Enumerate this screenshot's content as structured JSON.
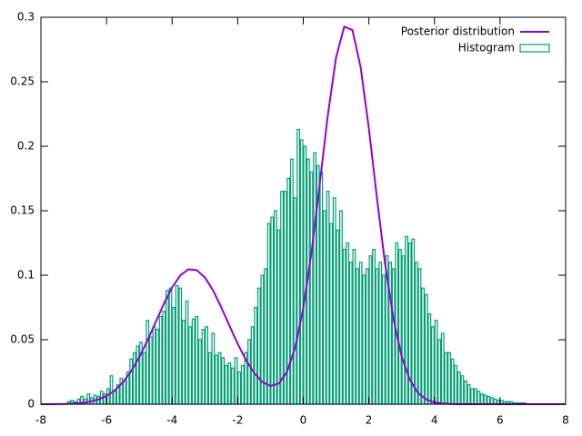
{
  "chart_data": {
    "type": "combo",
    "xlim": [
      -8,
      8
    ],
    "ylim": [
      0,
      0.3
    ],
    "xticks": [
      -8,
      -6,
      -4,
      -2,
      0,
      2,
      4,
      6,
      8
    ],
    "yticks": [
      0,
      0.05,
      0.1,
      0.15,
      0.2,
      0.25,
      0.3
    ],
    "legend": "top right",
    "series": [
      {
        "name": "Posterior distribution",
        "type": "line",
        "color": "#9400d3",
        "x": [
          -8,
          -7.75,
          -7.5,
          -7.25,
          -7,
          -6.75,
          -6.5,
          -6.25,
          -6,
          -5.75,
          -5.5,
          -5.25,
          -5,
          -4.75,
          -4.5,
          -4.25,
          -4,
          -3.75,
          -3.5,
          -3.25,
          -3,
          -2.75,
          -2.5,
          -2.25,
          -2,
          -1.75,
          -1.5,
          -1.25,
          -1,
          -0.75,
          -0.5,
          -0.25,
          0,
          0.25,
          0.5,
          0.75,
          1,
          1.25,
          1.5,
          1.75,
          2,
          2.25,
          2.5,
          2.75,
          3,
          3.25,
          3.5,
          3.75,
          4,
          4.25,
          4.5,
          4.75,
          5,
          5.25,
          5.5,
          5.75,
          6,
          6.25,
          6.5,
          6.75,
          7,
          7.25,
          7.5,
          7.75,
          8
        ],
        "values": [
          0,
          0,
          0.0001,
          0.0002,
          0.0005,
          0.001,
          0.002,
          0.0037,
          0.0064,
          0.0107,
          0.017,
          0.0255,
          0.0365,
          0.0495,
          0.0637,
          0.0779,
          0.0905,
          0.0999,
          0.1046,
          0.104,
          0.0983,
          0.0882,
          0.0751,
          0.0608,
          0.0468,
          0.0343,
          0.0243,
          0.0173,
          0.0141,
          0.016,
          0.0249,
          0.0437,
          0.0745,
          0.1177,
          0.1703,
          0.2243,
          0.2688,
          0.2928,
          0.29,
          0.2612,
          0.2138,
          0.1591,
          0.1077,
          0.0662,
          0.037,
          0.0189,
          0.0087,
          0.0037,
          0.0014,
          0.0005,
          0.0002,
          0,
          0,
          0,
          0,
          0,
          0,
          0,
          0,
          0,
          0,
          0,
          0,
          0,
          0
        ]
      },
      {
        "name": "Histogram",
        "type": "histogram",
        "color": "#009e73",
        "bins": [
          -7.2,
          -7.1,
          -7,
          -6.9,
          -6.8,
          -6.7,
          -6.6,
          -6.5,
          -6.4,
          -6.3,
          -6.2,
          -6.1,
          -6,
          -5.9,
          -5.8,
          -5.7,
          -5.6,
          -5.5,
          -5.4,
          -5.3,
          -5.2,
          -5.1,
          -5,
          -4.9,
          -4.8,
          -4.7,
          -4.6,
          -4.5,
          -4.4,
          -4.3,
          -4.2,
          -4.1,
          -4,
          -3.9,
          -3.8,
          -3.7,
          -3.6,
          -3.5,
          -3.4,
          -3.3,
          -3.2,
          -3.1,
          -3,
          -2.9,
          -2.8,
          -2.7,
          -2.6,
          -2.5,
          -2.4,
          -2.3,
          -2.2,
          -2.1,
          -2,
          -1.9,
          -1.8,
          -1.7,
          -1.6,
          -1.5,
          -1.4,
          -1.3,
          -1.2,
          -1.1,
          -1,
          -0.9,
          -0.8,
          -0.7,
          -0.6,
          -0.5,
          -0.4,
          -0.3,
          -0.2,
          -0.1,
          0,
          0.1,
          0.2,
          0.3,
          0.4,
          0.5,
          0.6,
          0.7,
          0.8,
          0.9,
          1,
          1.1,
          1.2,
          1.3,
          1.4,
          1.5,
          1.6,
          1.7,
          1.8,
          1.9,
          2,
          2.1,
          2.2,
          2.3,
          2.4,
          2.5,
          2.6,
          2.7,
          2.8,
          2.9,
          3,
          3.1,
          3.2,
          3.3,
          3.4,
          3.5,
          3.6,
          3.7,
          3.8,
          3.9,
          4,
          4.1,
          4.2,
          4.3,
          4.4,
          4.5,
          4.6,
          4.7,
          4.8,
          4.9,
          5,
          5.1,
          5.2,
          5.3,
          5.4,
          5.5,
          5.6,
          5.7,
          5.8,
          5.9,
          6,
          6.1,
          6.2,
          6.3,
          6.4,
          6.5,
          6.6,
          6.7,
          6.8
        ],
        "values": [
          0.002,
          0.003,
          0.002,
          0.004,
          0.006,
          0.004,
          0.008,
          0.005,
          0.007,
          0.006,
          0.01,
          0.008,
          0.012,
          0.022,
          0.01,
          0.015,
          0.02,
          0.018,
          0.025,
          0.035,
          0.04,
          0.045,
          0.048,
          0.04,
          0.065,
          0.052,
          0.06,
          0.058,
          0.068,
          0.072,
          0.088,
          0.09,
          0.075,
          0.092,
          0.09,
          0.065,
          0.08,
          0.06,
          0.066,
          0.068,
          0.05,
          0.058,
          0.06,
          0.04,
          0.055,
          0.038,
          0.04,
          0.036,
          0.03,
          0.032,
          0.028,
          0.036,
          0.025,
          0.03,
          0.04,
          0.05,
          0.06,
          0.075,
          0.09,
          0.1,
          0.105,
          0.14,
          0.145,
          0.15,
          0.135,
          0.165,
          0.165,
          0.175,
          0.19,
          0.16,
          0.213,
          0.205,
          0.2,
          0.19,
          0.18,
          0.195,
          0.185,
          0.18,
          0.15,
          0.165,
          0.14,
          0.16,
          0.135,
          0.15,
          0.12,
          0.125,
          0.11,
          0.12,
          0.105,
          0.11,
          0.1,
          0.105,
          0.115,
          0.12,
          0.105,
          0.11,
          0.1,
          0.115,
          0.11,
          0.105,
          0.125,
          0.12,
          0.115,
          0.13,
          0.125,
          0.128,
          0.11,
          0.105,
          0.09,
          0.085,
          0.07,
          0.06,
          0.065,
          0.05,
          0.055,
          0.04,
          0.04,
          0.035,
          0.03,
          0.025,
          0.022,
          0.018,
          0.015,
          0.012,
          0.012,
          0.01,
          0.008,
          0.007,
          0.006,
          0.005,
          0.004,
          0.003,
          0.003,
          0.002,
          0.002,
          0.002,
          0.001,
          0.001,
          0.001,
          0.001
        ]
      }
    ]
  }
}
